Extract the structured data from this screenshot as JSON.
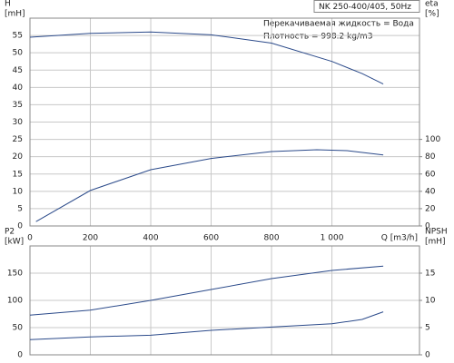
{
  "chart_data": [
    {
      "type": "line",
      "title": "NK 250-400/405, 50Hz",
      "annotations": [
        "Перекачиваемая жидкость = Вода",
        "Плотность = 998.2 kg/m3"
      ],
      "xlabel": "Q [m3/h]",
      "ylabel": [
        "H",
        "[mH]"
      ],
      "y2label": [
        "eta",
        "[%]"
      ],
      "xlim": [
        0,
        1290
      ],
      "xticks": [
        0,
        200,
        400,
        600,
        800,
        {
          "value": 1000,
          "label": "1 000"
        }
      ],
      "ylim": [
        0,
        60
      ],
      "yticks": [
        0,
        5,
        10,
        15,
        20,
        25,
        30,
        35,
        40,
        45,
        50,
        55
      ],
      "y2lim": [
        0,
        240
      ],
      "y2ticks": [
        0,
        20,
        40,
        60,
        80,
        100
      ],
      "grid": true,
      "series": [
        {
          "color": "#2b4a8a",
          "x": [
            0,
            200,
            400,
            600,
            800,
            1000,
            1100,
            1170
          ],
          "values": [
            54.5,
            55.6,
            56,
            55.2,
            52.8,
            47.5,
            44,
            41
          ]
        },
        {
          "color": "#2b4a8a",
          "axis": "y2",
          "x": [
            20,
            200,
            400,
            600,
            800,
            950,
            1050,
            1170
          ],
          "values": [
            5,
            41,
            65,
            78,
            86,
            88,
            87,
            82
          ]
        }
      ]
    },
    {
      "type": "line",
      "ylabel": [
        "P2",
        "[kW]"
      ],
      "y2label": [
        "NPSH",
        "[mH]"
      ],
      "xlim": [
        0,
        1290
      ],
      "xticks": [
        0,
        200,
        400,
        600,
        800,
        1000
      ],
      "ylim": [
        0,
        200
      ],
      "yticks": [
        0,
        50,
        100,
        150
      ],
      "y2lim": [
        0,
        20
      ],
      "y2ticks": [
        0,
        5,
        10,
        15
      ],
      "grid": true,
      "series": [
        {
          "color": "#2b4a8a",
          "x": [
            0,
            200,
            400,
            600,
            800,
            1000,
            1170
          ],
          "values": [
            73,
            82,
            100,
            120,
            140,
            155,
            163
          ]
        },
        {
          "color": "#2b4a8a",
          "axis": "y2",
          "x": [
            0,
            200,
            400,
            600,
            800,
            1000,
            1100,
            1170
          ],
          "values": [
            2.8,
            3.3,
            3.6,
            4.5,
            5.1,
            5.7,
            6.5,
            7.9
          ]
        }
      ]
    }
  ]
}
